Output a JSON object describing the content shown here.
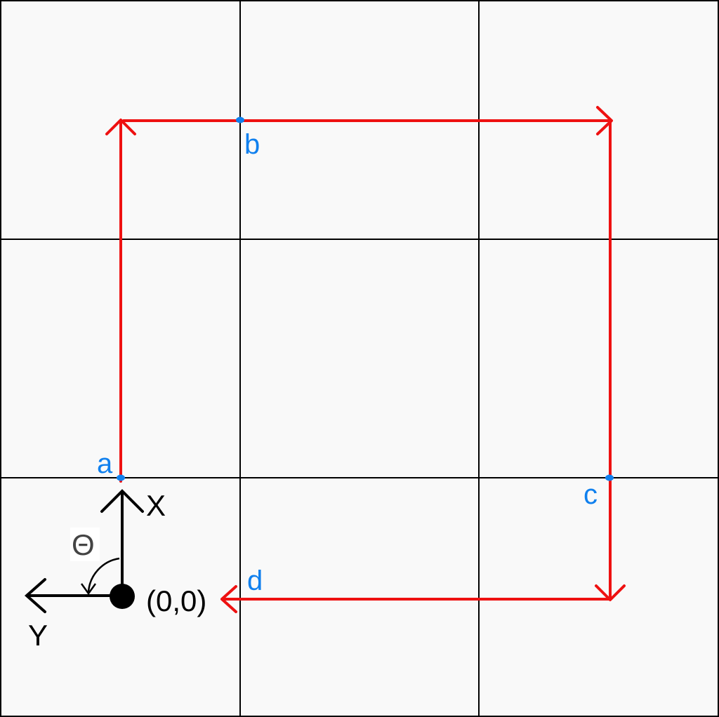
{
  "grid": {
    "rows": 3,
    "cols": 3,
    "background_color": "#f9f9f9",
    "line_color": "#000000"
  },
  "path": {
    "color": "#ee1111"
  },
  "waypoints": [
    {
      "id": "a",
      "label": "a"
    },
    {
      "id": "b",
      "label": "b"
    },
    {
      "id": "c",
      "label": "c"
    },
    {
      "id": "d",
      "label": "d"
    }
  ],
  "waypoint_color": "#1080ee",
  "frame": {
    "origin_label": "(0,0)",
    "x_label": "X",
    "y_label": "Y",
    "angle_label": "Θ",
    "color": "#000000",
    "angle_color": "#444444"
  }
}
